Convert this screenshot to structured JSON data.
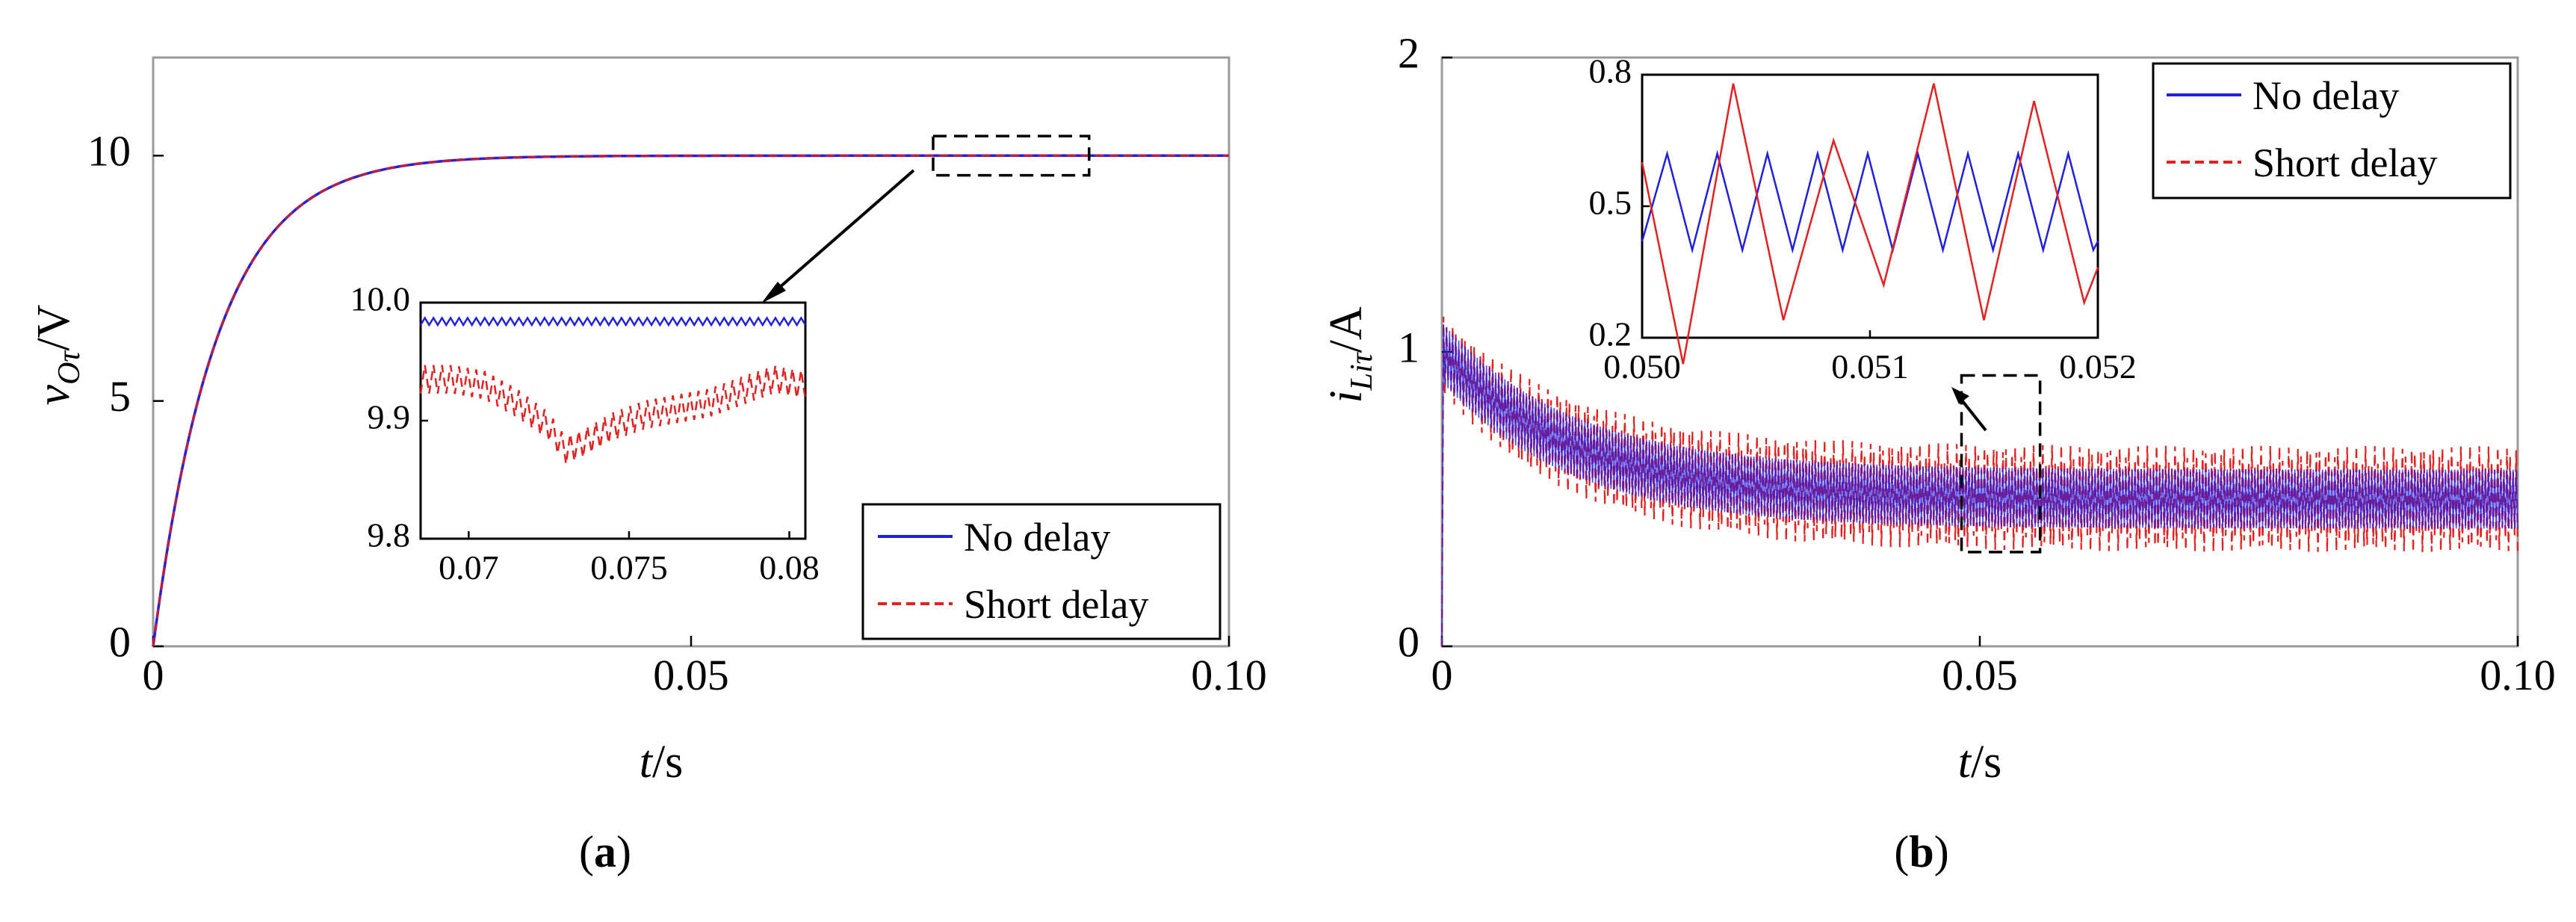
{
  "chart_data": [
    {
      "panel_label_prefix": "(",
      "panel_label": "a",
      "panel_label_suffix": ")",
      "type": "line",
      "xlabel": {
        "var": "t",
        "unit": "/s"
      },
      "ylabel": {
        "var": "v",
        "sub": "Oτ",
        "unit": "/V"
      },
      "xlim": [
        0,
        0.1
      ],
      "ylim": [
        0,
        12
      ],
      "xticks": [
        {
          "value": 0,
          "label": "0"
        },
        {
          "value": 0.05,
          "label": "0.05"
        },
        {
          "value": 0.1,
          "label": "0.10"
        }
      ],
      "yticks": [
        {
          "value": 0,
          "label": "0"
        },
        {
          "value": 5,
          "label": "5"
        },
        {
          "value": 10,
          "label": "10"
        }
      ],
      "legend_position": "bottom-right",
      "series": [
        {
          "name": "No delay",
          "color": "#1f1fe6",
          "style": "solid",
          "model": "first-order step",
          "final_value": 10,
          "time_constant": 0.006
        },
        {
          "name": "Short delay",
          "color": "#e61f1f",
          "style": "dashed",
          "model": "first-order step",
          "final_value": 10,
          "time_constant": 0.006
        }
      ],
      "zoom_box": {
        "x": [
          0.0725,
          0.087
        ],
        "y": [
          9.6,
          10.4
        ]
      },
      "inset": {
        "xlim": [
          0.0685,
          0.0805
        ],
        "ylim": [
          9.8,
          10.0
        ],
        "xticks": [
          {
            "value": 0.07,
            "label": "0.07"
          },
          {
            "value": 0.075,
            "label": "0.075"
          },
          {
            "value": 0.08,
            "label": "0.08"
          }
        ],
        "yticks": [
          {
            "value": 9.8,
            "label": "9.8"
          },
          {
            "value": 9.9,
            "label": "9.9"
          },
          {
            "value": 10.0,
            "label": "10.0"
          }
        ],
        "series": [
          {
            "name": "No delay",
            "color": "#1f1fe6",
            "style": "solid",
            "x": [
              0.0685,
              0.0805
            ],
            "y": [
              9.984,
              9.984
            ],
            "ripple": 0.003
          },
          {
            "name": "Short delay",
            "color": "#e61f1f",
            "style": "dashed",
            "x": [
              0.0685,
              0.0695,
              0.0705,
              0.0715,
              0.0725,
              0.073,
              0.0735,
              0.0745,
              0.0755,
              0.0765,
              0.0775,
              0.0785,
              0.0795,
              0.0805
            ],
            "y": [
              9.935,
              9.935,
              9.93,
              9.915,
              9.895,
              9.875,
              9.88,
              9.895,
              9.905,
              9.91,
              9.915,
              9.925,
              9.935,
              9.93
            ],
            "ripple": 0.012
          }
        ]
      }
    },
    {
      "panel_label_prefix": "(",
      "panel_label": "b",
      "panel_label_suffix": ")",
      "type": "line",
      "xlabel": {
        "var": "t",
        "unit": "/s"
      },
      "ylabel": {
        "var": "i",
        "sub": "Liτ",
        "unit": "/A"
      },
      "xlim": [
        0,
        0.1
      ],
      "ylim": [
        0,
        2
      ],
      "xticks": [
        {
          "value": 0,
          "label": "0"
        },
        {
          "value": 0.05,
          "label": "0.05"
        },
        {
          "value": 0.1,
          "label": "0.10"
        }
      ],
      "yticks": [
        {
          "value": 0,
          "label": "0"
        },
        {
          "value": 1,
          "label": "1"
        },
        {
          "value": 2,
          "label": "2"
        }
      ],
      "legend_position": "top-right",
      "series": [
        {
          "name": "Short delay",
          "color": "#e61f1f",
          "style": "dashed",
          "envelope": {
            "start": 1.0,
            "final": 0.5,
            "time_constant": 0.012,
            "half_band_start": 0.13,
            "half_band_final": 0.18
          }
        },
        {
          "name": "No delay",
          "color": "#1f1fe6",
          "style": "solid",
          "envelope": {
            "start": 1.0,
            "final": 0.5,
            "time_constant": 0.012,
            "half_band_start": 0.1,
            "half_band_final": 0.1
          }
        }
      ],
      "zoom_box": {
        "x": [
          0.0483,
          0.0556
        ],
        "y": [
          0.32,
          0.92
        ]
      },
      "inset": {
        "xlim": [
          0.05,
          0.052
        ],
        "ylim": [
          0.2,
          0.8
        ],
        "xticks": [
          {
            "value": 0.05,
            "label": "0.050"
          },
          {
            "value": 0.051,
            "label": "0.051"
          },
          {
            "value": 0.052,
            "label": "0.052"
          }
        ],
        "yticks": [
          {
            "value": 0.2,
            "label": "0.2"
          },
          {
            "value": 0.5,
            "label": "0.5"
          },
          {
            "value": 0.8,
            "label": "0.8"
          }
        ],
        "series": [
          {
            "name": "No delay",
            "color": "#1f1fe6",
            "style": "solid",
            "x": [
              0.05,
              0.05011,
              0.05022,
              0.05033,
              0.05044,
              0.05055,
              0.05066,
              0.05077,
              0.05088,
              0.05099,
              0.0511,
              0.05121,
              0.05132,
              0.05143,
              0.05154,
              0.05165,
              0.05176,
              0.05187,
              0.05198,
              0.052
            ],
            "y": [
              0.42,
              0.62,
              0.4,
              0.62,
              0.4,
              0.62,
              0.4,
              0.62,
              0.4,
              0.62,
              0.4,
              0.62,
              0.4,
              0.62,
              0.4,
              0.62,
              0.4,
              0.62,
              0.4,
              0.42
            ]
          },
          {
            "name": "Short delay",
            "color": "#e61f1f",
            "style": "solid",
            "x": [
              0.05,
              0.05018,
              0.0504,
              0.05062,
              0.05084,
              0.05106,
              0.05128,
              0.0515,
              0.05172,
              0.05194,
              0.052
            ],
            "y": [
              0.6,
              0.14,
              0.78,
              0.24,
              0.65,
              0.32,
              0.78,
              0.24,
              0.74,
              0.28,
              0.36
            ]
          }
        ]
      }
    }
  ]
}
